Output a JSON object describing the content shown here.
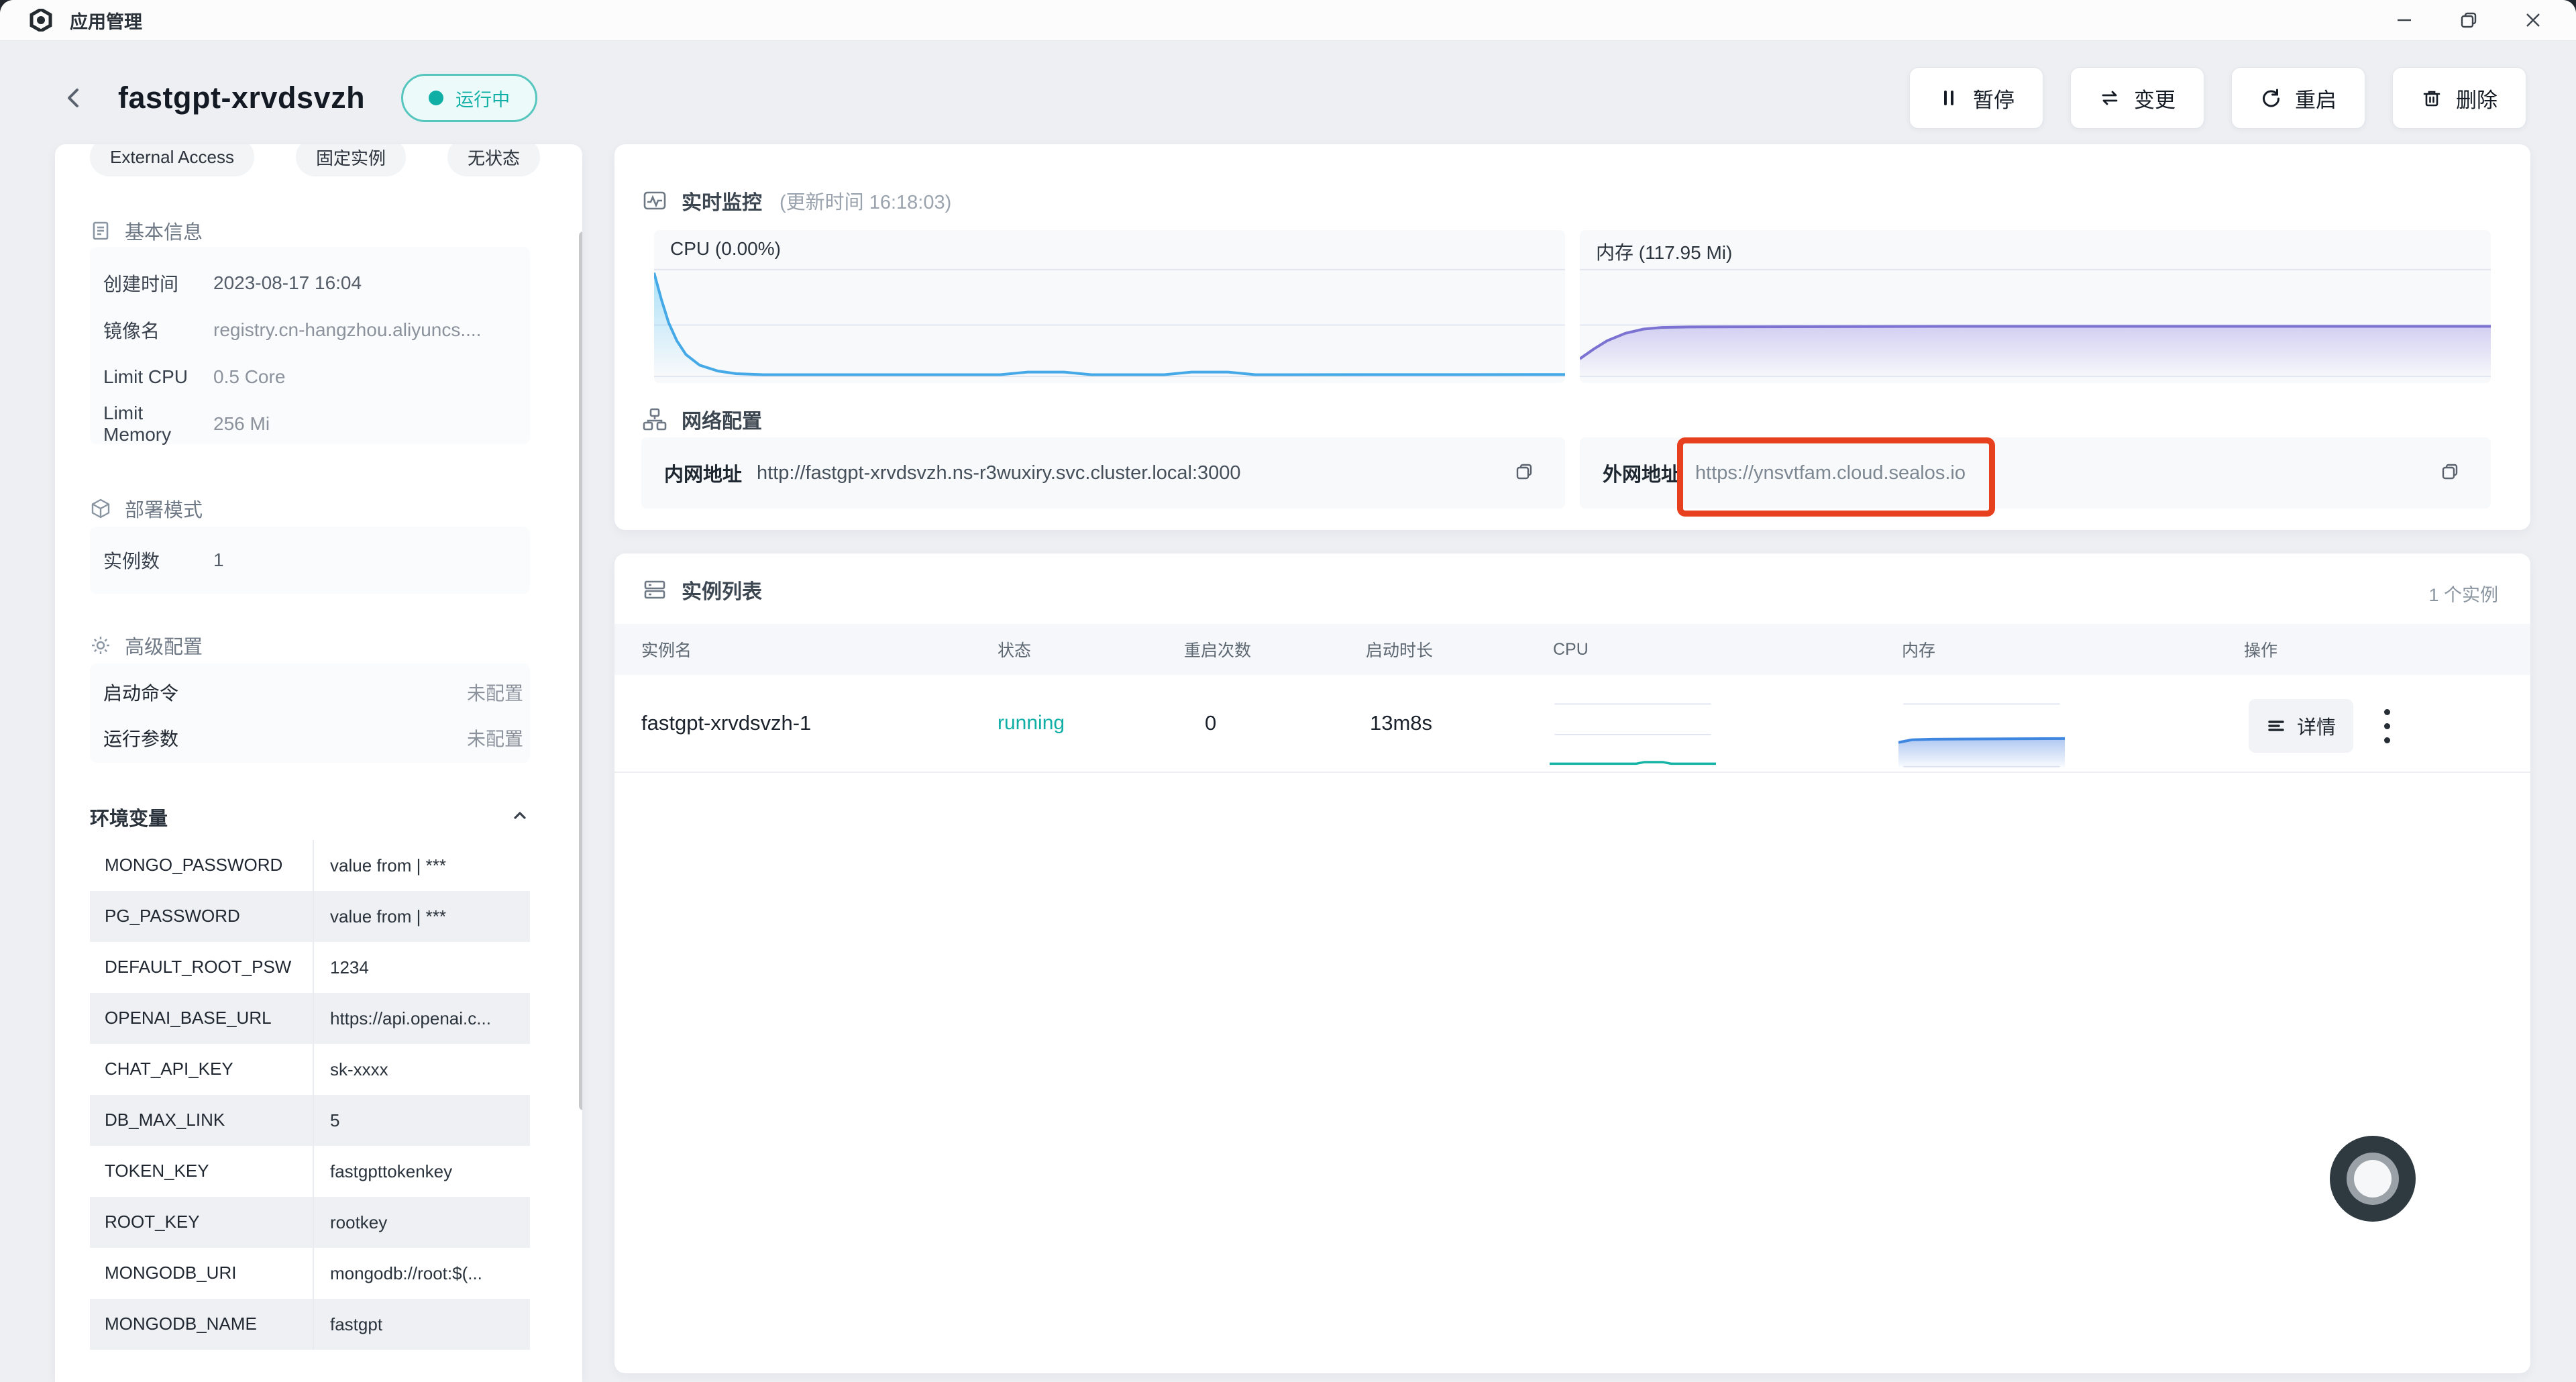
{
  "window": {
    "title": "应用管理"
  },
  "header": {
    "app_name": "fastgpt-xrvdsvzh",
    "status": "运行中",
    "actions": [
      {
        "label": "暂停",
        "icon": "pause-icon"
      },
      {
        "label": "变更",
        "icon": "swap-icon"
      },
      {
        "label": "重启",
        "icon": "restart-icon"
      },
      {
        "label": "删除",
        "icon": "trash-icon"
      }
    ]
  },
  "sidebar": {
    "tabs": [
      "External Access",
      "固定实例",
      "无状态"
    ],
    "basic_info": {
      "title": "基本信息",
      "rows": [
        {
          "label": "创建时间",
          "value": "2023-08-17 16:04"
        },
        {
          "label": "镜像名",
          "value": "registry.cn-hangzhou.aliyuncs...."
        },
        {
          "label": "Limit CPU",
          "value": "0.5 Core"
        },
        {
          "label": "Limit Memory",
          "value": "256 Mi"
        }
      ]
    },
    "deploy_mode": {
      "title": "部署模式",
      "rows": [
        {
          "label": "实例数",
          "value": "1"
        }
      ]
    },
    "advanced": {
      "title": "高级配置",
      "rows": [
        {
          "label": "启动命令",
          "value": "未配置"
        },
        {
          "label": "运行参数",
          "value": "未配置"
        }
      ]
    },
    "env": {
      "title": "环境变量",
      "rows": [
        {
          "key": "MONGO_PASSWORD",
          "value": "value from | ***"
        },
        {
          "key": "PG_PASSWORD",
          "value": "value from | ***"
        },
        {
          "key": "DEFAULT_ROOT_PSW",
          "value": "1234"
        },
        {
          "key": "OPENAI_BASE_URL",
          "value": "https://api.openai.c..."
        },
        {
          "key": "CHAT_API_KEY",
          "value": "sk-xxxx"
        },
        {
          "key": "DB_MAX_LINK",
          "value": "5"
        },
        {
          "key": "TOKEN_KEY",
          "value": "fastgpttokenkey"
        },
        {
          "key": "ROOT_KEY",
          "value": "rootkey"
        },
        {
          "key": "MONGODB_URI",
          "value": "mongodb://root:$(..."
        },
        {
          "key": "MONGODB_NAME",
          "value": "fastgpt"
        }
      ]
    }
  },
  "monitor": {
    "title": "实时监控",
    "subtitle": "(更新时间 16:18:03)",
    "cpu": {
      "label": "CPU (0.00%)",
      "series": [
        [
          0,
          0.97
        ],
        [
          0.8,
          0.72
        ],
        [
          1.6,
          0.5
        ],
        [
          2.5,
          0.33
        ],
        [
          3.5,
          0.2
        ],
        [
          5,
          0.1
        ],
        [
          7,
          0.045
        ],
        [
          9,
          0.02
        ],
        [
          12,
          0.01
        ],
        [
          38,
          0.01
        ],
        [
          41,
          0.035
        ],
        [
          45,
          0.035
        ],
        [
          48,
          0.01
        ],
        [
          56,
          0.01
        ],
        [
          59,
          0.035
        ],
        [
          63,
          0.035
        ],
        [
          66,
          0.01
        ],
        [
          100,
          0.012
        ]
      ]
    },
    "memory": {
      "label": "内存 (117.95 Mi)",
      "series": [
        [
          0,
          0.16
        ],
        [
          1.5,
          0.25
        ],
        [
          3,
          0.33
        ],
        [
          5,
          0.4
        ],
        [
          7,
          0.44
        ],
        [
          9,
          0.455
        ],
        [
          12,
          0.46
        ],
        [
          40,
          0.465
        ],
        [
          100,
          0.465
        ]
      ]
    }
  },
  "network": {
    "title": "网络配置",
    "internal_label": "内网地址",
    "internal_url": "http://fastgpt-xrvdsvzh.ns-r3wuxiry.svc.cluster.local:3000",
    "external_label": "外网地址",
    "external_url": "https://ynsvtfam.cloud.sealos.io"
  },
  "instances": {
    "title": "实例列表",
    "count": "1 个实例",
    "columns": [
      "实例名",
      "状态",
      "重启次数",
      "启动时长",
      "CPU",
      "内存",
      "操作"
    ],
    "row": {
      "name": "fastgpt-xrvdsvzh-1",
      "status": "running",
      "restarts": "0",
      "uptime": "13m8s",
      "detail_label": "详情",
      "cpu_spark": [
        [
          0,
          0.055
        ],
        [
          52,
          0.055
        ],
        [
          57,
          0.08
        ],
        [
          68,
          0.08
        ],
        [
          73,
          0.055
        ],
        [
          100,
          0.055
        ]
      ],
      "mem_spark": [
        [
          0,
          0.38
        ],
        [
          8,
          0.42
        ],
        [
          20,
          0.43
        ],
        [
          100,
          0.44
        ]
      ]
    }
  },
  "colors": {
    "teal": "#0FAFA6",
    "red": "#E7401E",
    "cpu_line": "#44A9E6",
    "mem_line": "#7B72D2",
    "spark_cpu": "#14B3A6",
    "spark_mem": "#3E86DF"
  }
}
